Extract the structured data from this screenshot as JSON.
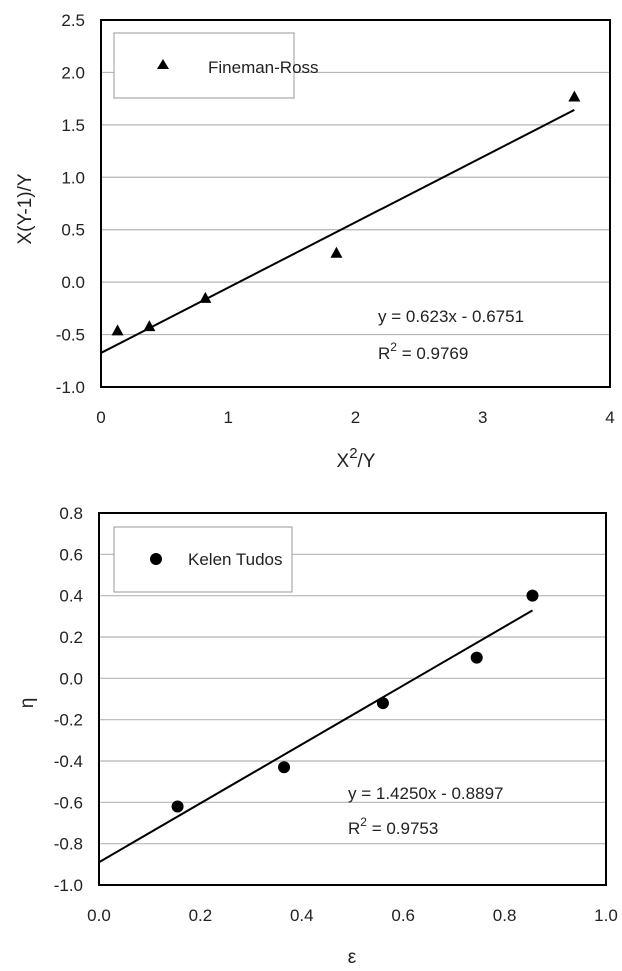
{
  "chart_data": [
    {
      "type": "scatter",
      "marker": "triangle",
      "xlabel_base": "X",
      "xlabel_sup": "2",
      "xlabel_rest": "/Y",
      "ylabel": "X(Y-1)/Y",
      "xlim": [
        0,
        4
      ],
      "ylim": [
        -1.0,
        2.5
      ],
      "xticks": [
        "0",
        "1",
        "2",
        "3",
        "4"
      ],
      "yticks": [
        "-1.0",
        "-0.5",
        "0.0",
        "0.5",
        "1.0",
        "1.5",
        "2.0",
        "2.5"
      ],
      "grid": "horizontal",
      "legend": {
        "label": "Fineman-Ross",
        "placement": "top-left"
      },
      "series": [
        {
          "name": "Fineman-Ross",
          "points": [
            {
              "x": 0.13,
              "y": -0.46
            },
            {
              "x": 0.38,
              "y": -0.42
            },
            {
              "x": 0.82,
              "y": -0.15
            },
            {
              "x": 1.85,
              "y": 0.28
            },
            {
              "x": 3.72,
              "y": 1.77
            }
          ]
        }
      ],
      "fit": {
        "slope": 0.623,
        "intercept": -0.6751,
        "x_range": [
          0,
          3.72
        ]
      },
      "equation": "y = 0.623x - 0.6751",
      "r2_prefix": "R",
      "r2_sup": "2",
      "r2_value": " = 0.9769"
    },
    {
      "type": "scatter",
      "marker": "circle",
      "xlabel": "ε",
      "ylabel": "η",
      "xlim": [
        0.0,
        1.0
      ],
      "ylim": [
        -1.0,
        0.8
      ],
      "xticks": [
        "0.0",
        "0.2",
        "0.4",
        "0.6",
        "0.8",
        "1.0"
      ],
      "yticks": [
        "-1.0",
        "-0.8",
        "-0.6",
        "-0.4",
        "-0.2",
        "0.0",
        "0.2",
        "0.4",
        "0.6",
        "0.8"
      ],
      "grid": "horizontal",
      "legend": {
        "label": "Kelen Tudos",
        "placement": "top-left"
      },
      "series": [
        {
          "name": "Kelen Tudos",
          "points": [
            {
              "x": 0.155,
              "y": -0.62
            },
            {
              "x": 0.365,
              "y": -0.43
            },
            {
              "x": 0.56,
              "y": -0.12
            },
            {
              "x": 0.745,
              "y": 0.1
            },
            {
              "x": 0.855,
              "y": 0.4
            }
          ]
        }
      ],
      "fit": {
        "slope": 1.425,
        "intercept": -0.8897,
        "x_range": [
          0,
          0.855
        ]
      },
      "equation": "y = 1.4250x - 0.8897",
      "r2_prefix": "R",
      "r2_sup": "2",
      "r2_value": " = 0.9753"
    }
  ]
}
